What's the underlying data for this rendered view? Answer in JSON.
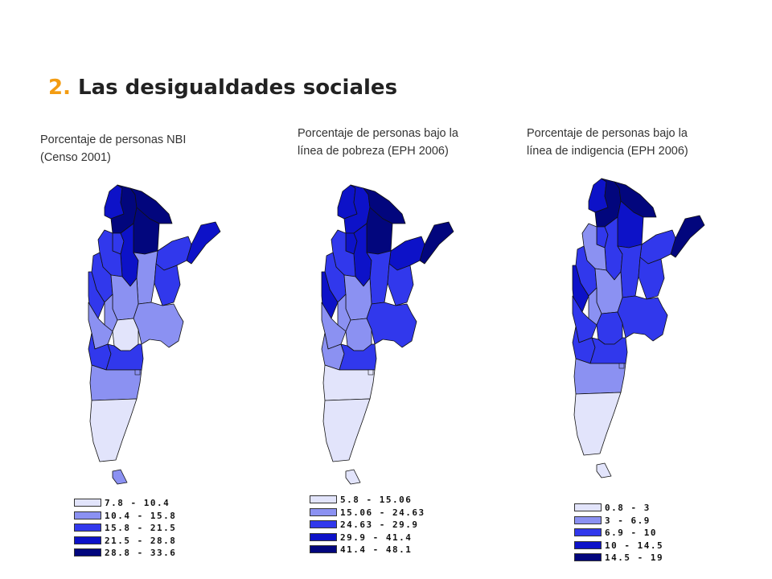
{
  "slide": {
    "title_number": "2.",
    "title_text": "Las desigualdades sociales"
  },
  "colors": {
    "class1": "#e2e4fb",
    "class2": "#8b91f2",
    "class3": "#3138ec",
    "class4": "#0d12c8",
    "class5": "#02067d",
    "accent": "#f39c12"
  },
  "maps": [
    {
      "caption": "Porcentaje de personas NBI\n(Censo 2001)",
      "legend": [
        "7.8 - 10.4",
        "10.4 - 15.8",
        "15.8 - 21.5",
        "21.5 - 28.8",
        "28.8 - 33.6"
      ],
      "regions": {
        "jujuy": 4,
        "salta": 5,
        "formosa": 5,
        "chaco": 5,
        "misiones": 4,
        "tucuman": 3,
        "santiago": 4,
        "catamarca": 3,
        "larioja": 3,
        "sanjuan": 3,
        "corrientes": 3,
        "santafe": 2,
        "entrerios": 3,
        "cordoba": 2,
        "sanluis": 2,
        "mendoza": 2,
        "buenosaires": 2,
        "lapampa": 1,
        "neuquen": 3,
        "rionegro": 3,
        "chubut": 2,
        "santacruz": 1,
        "tierradelfuego": 2
      }
    },
    {
      "caption": "Porcentaje de personas bajo la\nlínea de pobreza (EPH 2006)",
      "legend": [
        "5.8 - 15.06",
        "15.06 - 24.63",
        "24.63 - 29.9",
        "29.9 - 41.4",
        "41.4 - 48.1"
      ],
      "regions": {
        "jujuy": 4,
        "salta": 4,
        "formosa": 5,
        "chaco": 5,
        "misiones": 5,
        "tucuman": 4,
        "santiago": 4,
        "catamarca": 3,
        "larioja": 3,
        "sanjuan": 4,
        "corrientes": 4,
        "santafe": 3,
        "entrerios": 3,
        "cordoba": 2,
        "sanluis": 2,
        "mendoza": 2,
        "buenosaires": 3,
        "lapampa": 2,
        "neuquen": 2,
        "rionegro": 3,
        "chubut": 1,
        "santacruz": 1,
        "tierradelfuego": 1
      }
    },
    {
      "caption": "Porcentaje de personas bajo la\nlínea de indigencia (EPH 2006)",
      "legend": [
        "0.8 - 3",
        "3 - 6.9",
        "6.9 - 10",
        "10 - 14.5",
        "14.5 - 19"
      ],
      "regions": {
        "jujuy": 4,
        "salta": 5,
        "formosa": 5,
        "chaco": 4,
        "misiones": 5,
        "tucuman": 3,
        "santiago": 3,
        "catamarca": 2,
        "larioja": 3,
        "sanjuan": 4,
        "corrientes": 3,
        "santafe": 3,
        "entrerios": 3,
        "cordoba": 2,
        "sanluis": 2,
        "mendoza": 3,
        "buenosaires": 3,
        "lapampa": 3,
        "neuquen": 3,
        "rionegro": 3,
        "chubut": 2,
        "santacruz": 1,
        "tierradelfuego": 1
      }
    }
  ]
}
